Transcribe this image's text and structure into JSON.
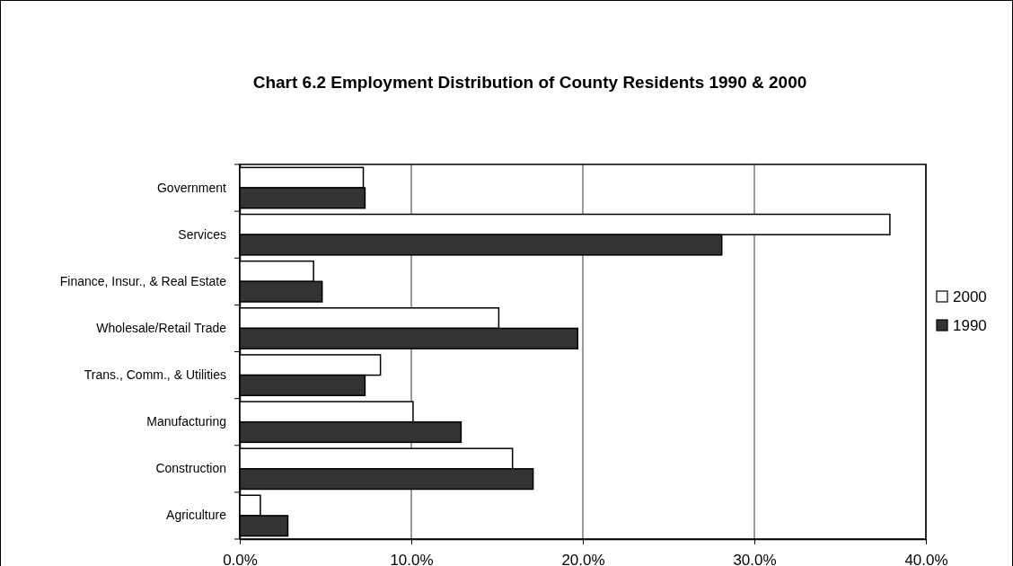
{
  "chart_data": {
    "type": "bar",
    "orientation": "horizontal",
    "title": "Chart 6.2 Employment Distribution of County Residents 1990 & 2000",
    "categories": [
      "Government",
      "Services",
      "Finance, Insur., & Real Estate",
      "Wholesale/Retail Trade",
      "Trans., Comm., & Utilities",
      "Manufacturing",
      "Construction",
      "Agriculture"
    ],
    "series": [
      {
        "name": "2000",
        "color": "#ffffff",
        "values": [
          7.2,
          37.9,
          4.3,
          15.1,
          8.2,
          10.1,
          15.9,
          1.2
        ]
      },
      {
        "name": "1990",
        "color": "#333333",
        "values": [
          7.3,
          28.1,
          4.8,
          19.7,
          7.3,
          12.9,
          17.1,
          2.8
        ]
      }
    ],
    "xlim": [
      0,
      40
    ],
    "xticks": [
      {
        "value": 0,
        "label": "0.0%"
      },
      {
        "value": 10,
        "label": "10.0%"
      },
      {
        "value": 20,
        "label": "20.0%"
      },
      {
        "value": 30,
        "label": "30.0%"
      },
      {
        "value": 40,
        "label": "40.0%"
      }
    ],
    "grid": "x",
    "legend": "right"
  }
}
